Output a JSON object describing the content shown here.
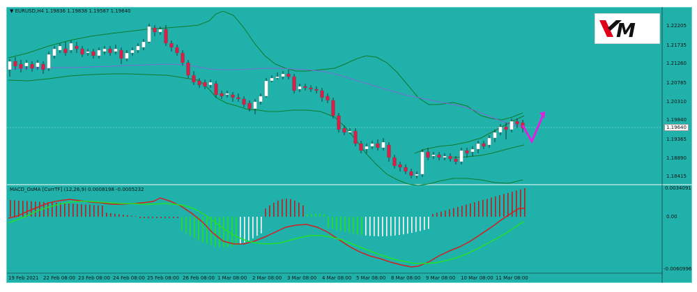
{
  "main": {
    "header": "▼ EURUSD,H4  1.19836 1.19838 1.19587 1.19640",
    "price_axis": [
      "1.22205",
      "1.21735",
      "1.21260",
      "1.20785",
      "1.20310",
      "1.19840",
      "1.19365",
      "1.18890",
      "1.18415"
    ],
    "current_price": "1.19640"
  },
  "macd": {
    "header": "MACD_OsMA [CurrTF] (12,26,9) 0.0008198 -0.0005232",
    "axis": [
      "0.0034091",
      "0.00",
      "-0.0060996"
    ]
  },
  "time_axis": [
    "19 Feb 2021",
    "22 Feb 08:00",
    "23 Feb 08:00",
    "24 Feb 08:00",
    "25 Feb 08:00",
    "26 Feb 08:00",
    "1 Mar 08:00",
    "2 Mar 08:00",
    "3 Mar 08:00",
    "4 Mar 08:00",
    "5 Mar 08:00",
    "8 Mar 08:00",
    "9 Mar 08:00",
    "10 Mar 08:00",
    "11 Mar 08:00"
  ],
  "logo": {
    "text": "XM",
    "colors": {
      "mark": "#e1001a",
      "text": "#111111"
    }
  },
  "colors": {
    "background": "#20b2aa",
    "bull_candle": "#ffffff",
    "bear_candle": "#d6204a",
    "bollinger": "#0f7a2a",
    "ma": "#7a6bd6",
    "macd_line": "#d21e1e",
    "signal_line": "#22e02a",
    "arrow": "#e020e0"
  }
}
